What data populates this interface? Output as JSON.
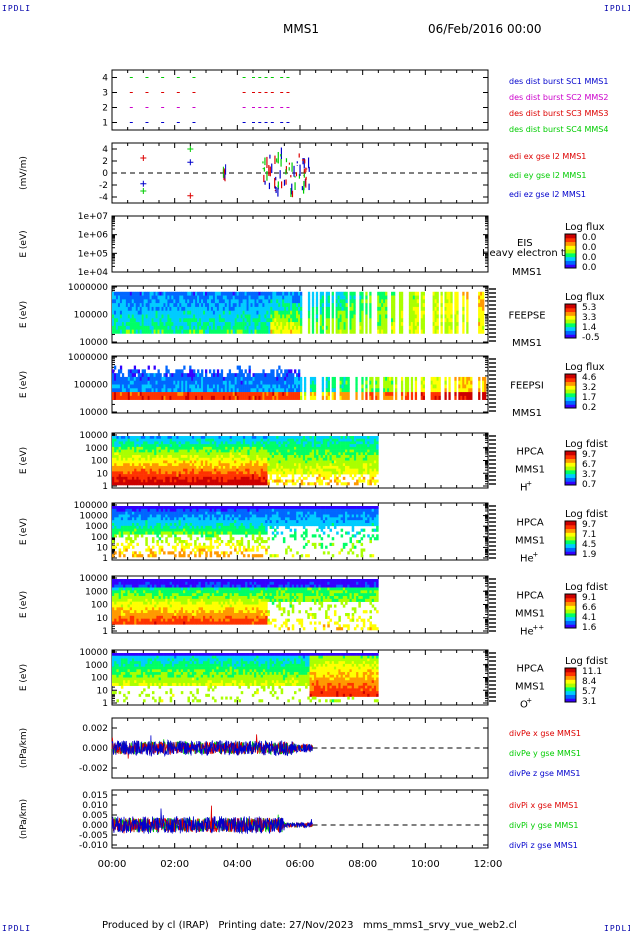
{
  "header": {
    "corner_tl": "IPDLI",
    "corner_tr": "IPDLI",
    "corner_bl": "IPDLI",
    "corner_br": "IPDLI",
    "mission": "MMS1",
    "date": "06/Feb/2016 00:00"
  },
  "footer": {
    "text": "Produced by cl (IRAP)   Printing date: 27/Nov/2023   mms_mms1_srvy_vue_web2.cl"
  },
  "colors": {
    "axis": "#000000",
    "red": "#dd0000",
    "magenta": "#cc00cc",
    "green": "#00cc00",
    "blue": "#0000cc",
    "colorbar": [
      "#3300ff",
      "#0066ff",
      "#00ccff",
      "#00ff66",
      "#aaff00",
      "#ffff00",
      "#ff9900",
      "#ff3300",
      "#cc0000"
    ]
  },
  "chart_data": [
    {
      "type": "scatter",
      "panel": "burst",
      "yticks": [
        "4",
        "3",
        "2",
        "1"
      ],
      "ylim": [
        0.5,
        4.5
      ],
      "legend": [
        "des dist burst SC1 MMS1",
        "des dist burst SC2 MMS2",
        "des dist burst SC3 MMS3",
        "des dist burst SC4 MMS4"
      ],
      "series": [
        {
          "name": "des dist burst SC1 MMS1",
          "level": 1,
          "x": [
            0.6,
            1.1,
            1.6,
            2.1,
            2.6,
            4.2,
            4.5,
            4.7,
            4.9,
            5.1,
            5.4,
            5.6
          ]
        },
        {
          "name": "des dist burst SC2 MMS2",
          "level": 2,
          "x": [
            0.6,
            1.1,
            1.6,
            2.1,
            2.6,
            4.2,
            4.5,
            4.7,
            4.9,
            5.1,
            5.4,
            5.6
          ]
        },
        {
          "name": "des dist burst SC3 MMS3",
          "level": 3,
          "x": [
            0.6,
            1.1,
            1.6,
            2.1,
            2.6,
            4.2,
            4.5,
            4.7,
            4.9,
            5.1,
            5.4,
            5.6
          ]
        },
        {
          "name": "des dist burst SC4 MMS4",
          "level": 4,
          "x": [
            0.6,
            1.1,
            1.6,
            2.1,
            2.6,
            4.2,
            4.5,
            4.7,
            4.9,
            5.1,
            5.4,
            5.6
          ]
        }
      ]
    },
    {
      "type": "line",
      "panel": "edi",
      "ylabel": "(mV/m)",
      "yticks": [
        "4",
        "2",
        "0",
        "-2",
        "-4"
      ],
      "ylim": [
        -5,
        5
      ],
      "legend": [
        "edi ex gse l2 MMS1",
        "edi ey gse l2 MMS1",
        "edi ez gse l2 MMS1"
      ],
      "markers": [
        {
          "series": "ex",
          "x": 1.0,
          "y": 2.5
        },
        {
          "series": "ex",
          "x": 2.5,
          "y": -3.8
        },
        {
          "series": "ey",
          "x": 2.5,
          "y": 4.0
        },
        {
          "series": "ey",
          "x": 1.0,
          "y": -3.0
        },
        {
          "series": "ez",
          "x": 2.5,
          "y": 1.8
        },
        {
          "series": "ez",
          "x": 1.0,
          "y": -1.8
        }
      ]
    },
    {
      "type": "heatmap",
      "panel": "eis",
      "ylabel": "E (eV)",
      "yticks": [
        "1e+07",
        "1e+06",
        "1e+05",
        "1e+04"
      ],
      "label_lines": [
        "EIS",
        "MMS1"
      ],
      "overlay_label": "Heavy electron to",
      "cbar_title": "Log flux",
      "cbar_ticks": [
        "0.0",
        "0.0",
        "0.0",
        "0.0"
      ]
    },
    {
      "type": "heatmap",
      "panel": "feepse",
      "ylabel": "E (eV)",
      "yticks": [
        "1000000",
        "100000",
        "10000"
      ],
      "label_lines": [
        "FEEPSE",
        "MMS1"
      ],
      "cbar_title": "Log flux",
      "cbar_ticks": [
        "5.3",
        "3.3",
        "1.4",
        "-0.5"
      ]
    },
    {
      "type": "heatmap",
      "panel": "feepsi",
      "ylabel": "E (eV)",
      "yticks": [
        "1000000",
        "100000",
        "10000"
      ],
      "label_lines": [
        "FEEPSI",
        "MMS1"
      ],
      "cbar_title": "Log flux",
      "cbar_ticks": [
        "4.6",
        "3.2",
        "1.7",
        "0.2"
      ]
    },
    {
      "type": "heatmap",
      "panel": "hpca_h",
      "ylabel": "E (eV)",
      "yticks": [
        "10000",
        "1000",
        "100",
        "10",
        "1"
      ],
      "label_lines": [
        "HPCA",
        "MMS1"
      ],
      "species": "H",
      "species_sup": "+",
      "cbar_title": "Log fdist",
      "cbar_ticks": [
        "9.7",
        "6.7",
        "3.7",
        "0.7"
      ]
    },
    {
      "type": "heatmap",
      "panel": "hpca_he",
      "ylabel": "E (eV)",
      "yticks": [
        "100000",
        "10000",
        "1000",
        "100",
        "10",
        "1"
      ],
      "label_lines": [
        "HPCA",
        "MMS1"
      ],
      "species": "He",
      "species_sup": "+",
      "cbar_title": "Log fdist",
      "cbar_ticks": [
        "9.7",
        "7.1",
        "4.5",
        "1.9"
      ]
    },
    {
      "type": "heatmap",
      "panel": "hpca_hepp",
      "ylabel": "E (eV)",
      "yticks": [
        "10000",
        "1000",
        "100",
        "10",
        "1"
      ],
      "label_lines": [
        "HPCA",
        "MMS1"
      ],
      "species": "He",
      "species_sup": "++",
      "cbar_title": "Log fdist",
      "cbar_ticks": [
        "9.1",
        "6.6",
        "4.1",
        "1.6"
      ]
    },
    {
      "type": "heatmap",
      "panel": "hpca_o",
      "ylabel": "E (eV)",
      "yticks": [
        "10000",
        "1000",
        "100",
        "10",
        "1"
      ],
      "label_lines": [
        "HPCA",
        "MMS1"
      ],
      "species": "O",
      "species_sup": "+",
      "cbar_title": "Log fdist",
      "cbar_ticks": [
        "11.1",
        "8.4",
        "5.7",
        "3.1"
      ]
    },
    {
      "type": "line",
      "panel": "divpe",
      "ylabel": "(nPa/km)",
      "yticks": [
        "0.002",
        "0.000",
        "-0.002"
      ],
      "ylim": [
        -0.003,
        0.003
      ],
      "legend": [
        "divPe x gse MMS1",
        "divPe y gse MMS1",
        "divPe z gse MMS1"
      ]
    },
    {
      "type": "line",
      "panel": "divpi",
      "ylabel": "(nPa/km)",
      "yticks": [
        "0.015",
        "0.010",
        "0.005",
        "0.000",
        "-0.005",
        "-0.010"
      ],
      "ylim": [
        -0.0115,
        0.0175
      ],
      "legend": [
        "divPi x gse MMS1",
        "divPi y gse MMS1",
        "divPi z gse MMS1"
      ]
    }
  ],
  "xaxis": {
    "ticks": [
      "00:00",
      "02:00",
      "04:00",
      "06:00",
      "08:00",
      "10:00",
      "12:00"
    ],
    "xlim": [
      0,
      12
    ]
  }
}
